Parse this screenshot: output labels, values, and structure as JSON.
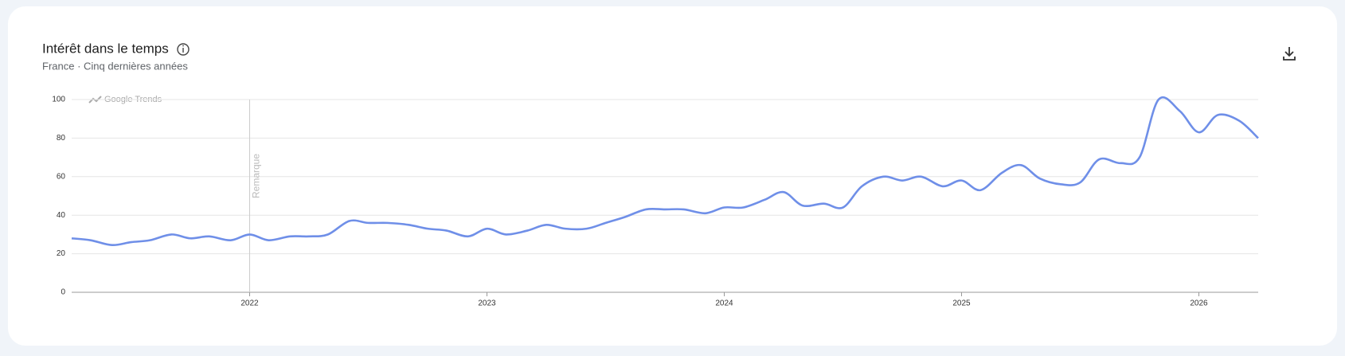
{
  "chart_data": {
    "type": "line",
    "title": "Intérêt dans le temps",
    "subtitle": "France · Cinq dernières années",
    "watermark": "Google Trends",
    "annotation": {
      "text": "Remarque",
      "x": 2022
    },
    "x": [
      2021.25,
      2021.33,
      2021.42,
      2021.5,
      2021.58,
      2021.67,
      2021.75,
      2021.83,
      2021.92,
      2022.0,
      2022.08,
      2022.17,
      2022.25,
      2022.33,
      2022.42,
      2022.5,
      2022.58,
      2022.67,
      2022.75,
      2022.83,
      2022.92,
      2023.0,
      2023.08,
      2023.17,
      2023.25,
      2023.33,
      2023.42,
      2023.5,
      2023.58,
      2023.67,
      2023.75,
      2023.83,
      2023.92,
      2024.0,
      2024.08,
      2024.17,
      2024.25,
      2024.33,
      2024.42,
      2024.5,
      2024.58,
      2024.67,
      2024.75,
      2024.83,
      2024.92,
      2025.0,
      2025.08,
      2025.17,
      2025.25,
      2025.33,
      2025.42,
      2025.5,
      2025.58,
      2025.67,
      2025.75,
      2025.83,
      2025.92,
      2026.0,
      2026.08,
      2026.17,
      2026.25
    ],
    "series": [
      {
        "color": "#6f8fe8",
        "values": [
          28,
          27,
          24.5,
          26,
          27,
          30,
          28,
          29,
          27,
          30,
          27,
          29,
          29,
          30,
          37,
          36,
          36,
          35,
          33,
          32,
          29,
          33,
          30,
          32,
          35,
          33,
          33,
          36,
          39,
          43,
          43,
          43,
          41,
          44,
          44,
          48,
          52,
          45,
          46,
          44,
          55,
          60,
          58,
          60,
          55,
          58,
          53,
          62,
          66,
          59,
          56,
          57,
          69,
          67,
          70,
          100,
          94,
          83,
          92,
          89,
          80
        ]
      }
    ],
    "xlim": [
      2021.25,
      2026.25
    ],
    "xticks": [
      2022,
      2023,
      2024,
      2025,
      2026
    ],
    "ylim": [
      0,
      100
    ],
    "yticks": [
      0,
      20,
      40,
      60,
      80,
      100
    ],
    "grid": true
  }
}
